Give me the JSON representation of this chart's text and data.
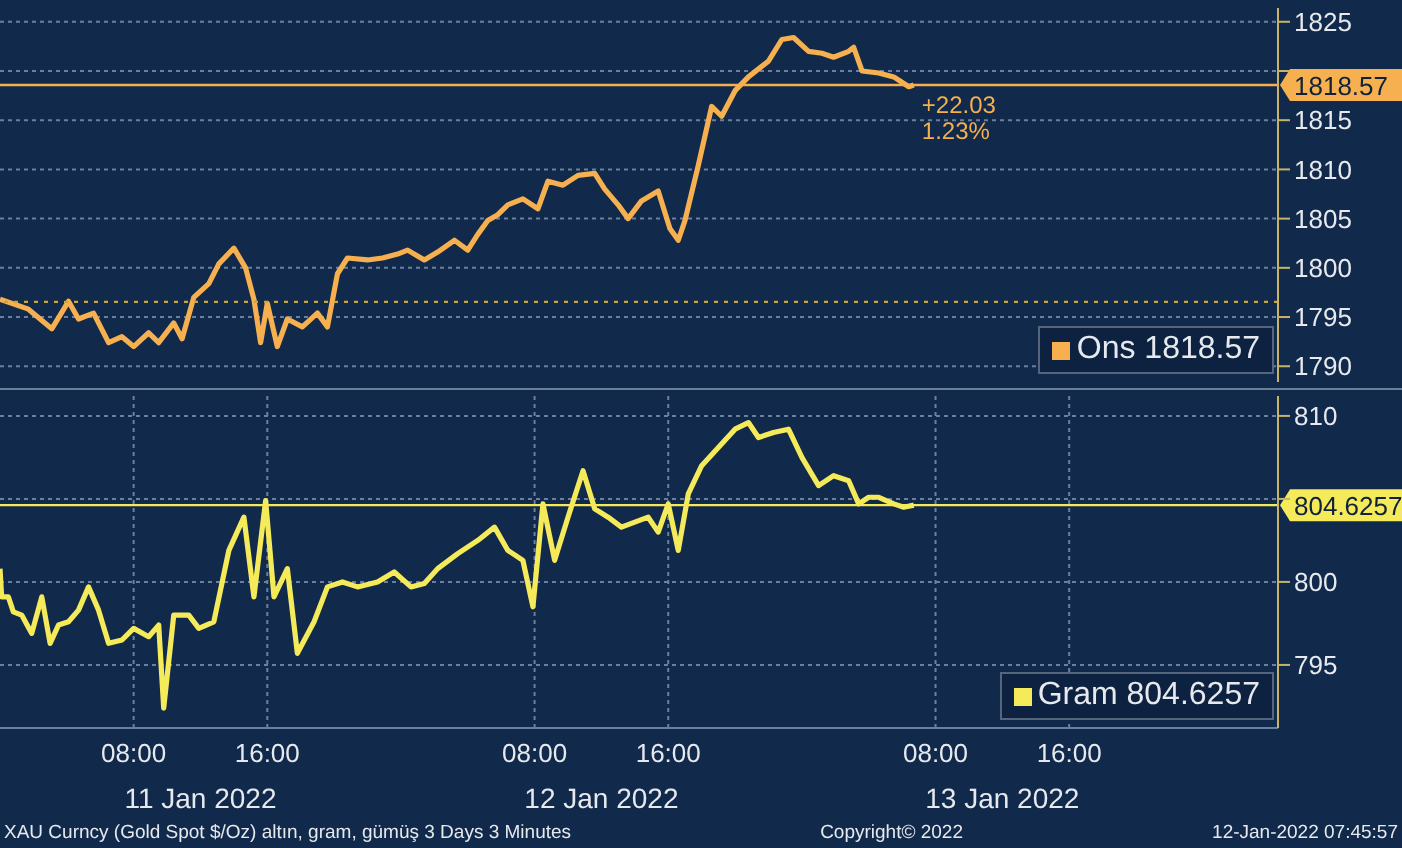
{
  "chart_data": [
    {
      "type": "line",
      "xlim": [
        "2022-01-11T00:00",
        "2022-01-14T04:30"
      ],
      "xticks": [
        {
          "value": "2022-01-11T08:00",
          "label": null
        },
        {
          "value": "2022-01-11T16:00",
          "label": null
        },
        {
          "value": "2022-01-12T08:00",
          "label": null
        },
        {
          "value": "2022-01-12T16:00",
          "label": null
        },
        {
          "value": "2022-01-13T08:00",
          "label": null
        },
        {
          "value": "2022-01-13T16:00",
          "label": null
        }
      ],
      "tick_labels": "y",
      "ylim": [
        1788.4,
        1826.4
      ],
      "yticks": [
        1790,
        1795,
        1800,
        1805,
        1810,
        1815,
        {
          "value": 1820,
          "label": null
        },
        1825
      ],
      "grid": true,
      "legend": "bottom right",
      "marker": "none",
      "line_style": "solid",
      "x": [
        "2022-01-11T00:00",
        "2022-01-11T01:42",
        "2022-01-11T03:06",
        "2022-01-11T04:06",
        "2022-01-11T04:42",
        "2022-01-11T05:36",
        "2022-01-11T06:30",
        "2022-01-11T07:18",
        "2022-01-11T08:00",
        "2022-01-11T08:54",
        "2022-01-11T09:30",
        "2022-01-11T10:24",
        "2022-01-11T10:54",
        "2022-01-11T11:36",
        "2022-01-11T12:30",
        "2022-01-11T13:06",
        "2022-01-11T14:00",
        "2022-01-11T14:42",
        "2022-01-11T15:12",
        "2022-01-11T15:36",
        "2022-01-11T16:00",
        "2022-01-11T16:36",
        "2022-01-11T17:12",
        "2022-01-11T18:06",
        "2022-01-11T19:00",
        "2022-01-11T19:36",
        "2022-01-11T20:12",
        "2022-01-11T20:48",
        "2022-01-11T22:00",
        "2022-01-11T22:54",
        "2022-01-11T23:48",
        "2022-01-12T00:24",
        "2022-01-12T01:24",
        "2022-01-12T02:12",
        "2022-01-12T03:12",
        "2022-01-12T04:00",
        "2022-01-12T04:36",
        "2022-01-12T05:12",
        "2022-01-12T05:48",
        "2022-01-12T06:24",
        "2022-01-12T07:18",
        "2022-01-12T08:12",
        "2022-01-12T08:48",
        "2022-01-12T09:42",
        "2022-01-12T10:36",
        "2022-01-12T11:36",
        "2022-01-12T12:12",
        "2022-01-12T13:00",
        "2022-01-12T13:36",
        "2022-01-12T14:24",
        "2022-01-12T15:24",
        "2022-01-12T16:06",
        "2022-01-12T16:36",
        "2022-01-12T17:00",
        "2022-01-12T17:48",
        "2022-01-12T18:36",
        "2022-01-12T19:12",
        "2022-01-12T20:00",
        "2022-01-12T20:48",
        "2022-01-12T22:00",
        "2022-01-12T22:48",
        "2022-01-12T23:30",
        "2022-01-13T00:24",
        "2022-01-13T01:12",
        "2022-01-13T01:54",
        "2022-01-13T02:48",
        "2022-01-13T03:06",
        "2022-01-13T03:36",
        "2022-01-13T04:36",
        "2022-01-13T05:30",
        "2022-01-13T06:24",
        "2022-01-13T06:42"
      ],
      "series": [
        {
          "name": "Ons 1818.57",
          "color": "#f6b04f",
          "values": [
            1796.8,
            1795.8,
            1793.8,
            1796.6,
            1794.8,
            1795.4,
            1792.4,
            1793.0,
            1792.0,
            1793.4,
            1792.4,
            1794.4,
            1792.8,
            1797.0,
            1798.4,
            1800.4,
            1802.0,
            1800.0,
            1796.8,
            1792.4,
            1796.4,
            1792.0,
            1794.8,
            1794.0,
            1795.4,
            1794.0,
            1799.4,
            1801.0,
            1800.8,
            1801.0,
            1801.4,
            1801.8,
            1800.8,
            1801.6,
            1802.8,
            1801.8,
            1803.4,
            1804.8,
            1805.4,
            1806.4,
            1807.0,
            1806.0,
            1808.8,
            1808.4,
            1809.4,
            1809.6,
            1808.0,
            1806.4,
            1805.0,
            1806.8,
            1807.8,
            1804.0,
            1802.8,
            1804.8,
            1810.4,
            1816.4,
            1815.4,
            1818.0,
            1819.4,
            1821.0,
            1823.2,
            1823.4,
            1822.0,
            1821.8,
            1821.4,
            1822.0,
            1822.4,
            1820.0,
            1819.8,
            1819.4,
            1818.4,
            1818.57
          ]
        }
      ],
      "ref_lines": [
        {
          "axis": "y",
          "value": 1818.57,
          "label": "1818.57",
          "color": "#f6b04f",
          "line_style": "solid"
        },
        {
          "axis": "y",
          "value": 1796.54,
          "color": "#c9a642",
          "line_style": "dotted"
        }
      ],
      "annotations": [
        {
          "text": "+22.03",
          "x": "2022-01-13T06:42",
          "y": 1818.57
        },
        {
          "text": "1.23%",
          "x": "2022-01-13T06:42",
          "y": 1818.57
        }
      ]
    },
    {
      "type": "line",
      "xlim": [
        "2022-01-11T00:00",
        "2022-01-14T04:30"
      ],
      "xticks": [
        {
          "value": "2022-01-11T08:00",
          "label": "08:00"
        },
        {
          "value": "2022-01-11T16:00",
          "label": "16:00"
        },
        {
          "value": "2022-01-12T08:00",
          "label": "08:00"
        },
        {
          "value": "2022-01-12T16:00",
          "label": "16:00"
        },
        {
          "value": "2022-01-13T08:00",
          "label": "08:00"
        },
        {
          "value": "2022-01-13T16:00",
          "label": "16:00"
        }
      ],
      "x2lim": [
        "2022-01-11T00:00",
        "2022-01-14T04:30"
      ],
      "x2ticks": [
        {
          "value": "2022-01-11T12:00",
          "label": "11 Jan 2022"
        },
        {
          "value": "2022-01-12T12:00",
          "label": "12 Jan 2022"
        },
        {
          "value": "2022-01-13T12:00",
          "label": "13 Jan 2022"
        }
      ],
      "ylim": [
        791.2,
        811.2
      ],
      "yticks": [
        795,
        800,
        {
          "value": 805,
          "label": null
        },
        810
      ],
      "grid": true,
      "legend": "bottom right",
      "marker": "none",
      "line_style": "solid",
      "x": [
        "2022-01-11T00:00",
        "2022-01-11T00:06",
        "2022-01-11T00:30",
        "2022-01-11T00:48",
        "2022-01-11T01:18",
        "2022-01-11T01:54",
        "2022-01-11T02:30",
        "2022-01-11T03:00",
        "2022-01-11T03:30",
        "2022-01-11T04:06",
        "2022-01-11T04:42",
        "2022-01-11T05:18",
        "2022-01-11T05:54",
        "2022-01-11T06:30",
        "2022-01-11T07:18",
        "2022-01-11T08:00",
        "2022-01-11T08:54",
        "2022-01-11T09:30",
        "2022-01-11T09:48",
        "2022-01-11T10:24",
        "2022-01-11T11:18",
        "2022-01-11T11:54",
        "2022-01-11T12:48",
        "2022-01-11T13:42",
        "2022-01-11T14:36",
        "2022-01-11T15:12",
        "2022-01-11T15:54",
        "2022-01-11T16:24",
        "2022-01-11T17:12",
        "2022-01-11T17:48",
        "2022-01-11T18:48",
        "2022-01-11T19:36",
        "2022-01-11T20:30",
        "2022-01-11T21:24",
        "2022-01-11T22:36",
        "2022-01-11T23:36",
        "2022-01-12T00:36",
        "2022-01-12T01:24",
        "2022-01-12T02:12",
        "2022-01-12T03:24",
        "2022-01-12T04:36",
        "2022-01-12T05:36",
        "2022-01-12T06:24",
        "2022-01-12T07:18",
        "2022-01-12T07:54",
        "2022-01-12T08:30",
        "2022-01-12T09:12",
        "2022-01-12T10:00",
        "2022-01-12T10:54",
        "2022-01-12T11:36",
        "2022-01-12T12:24",
        "2022-01-12T13:12",
        "2022-01-12T14:00",
        "2022-01-12T14:48",
        "2022-01-12T15:24",
        "2022-01-12T16:00",
        "2022-01-12T16:36",
        "2022-01-12T17:12",
        "2022-01-12T18:00",
        "2022-01-12T19:00",
        "2022-01-12T20:00",
        "2022-01-12T20:48",
        "2022-01-12T21:24",
        "2022-01-12T22:18",
        "2022-01-12T23:12",
        "2022-01-13T00:00",
        "2022-01-13T01:00",
        "2022-01-13T01:54",
        "2022-01-13T02:48",
        "2022-01-13T03:24",
        "2022-01-13T04:00",
        "2022-01-13T04:36",
        "2022-01-13T05:30",
        "2022-01-13T06:06",
        "2022-01-13T06:42"
      ],
      "series": [
        {
          "name": "Gram 804.6257",
          "color": "#f5ea5a",
          "values": [
            800.8,
            799.1,
            799.1,
            798.2,
            798.0,
            796.9,
            799.1,
            796.3,
            797.4,
            797.6,
            798.3,
            799.7,
            798.3,
            796.3,
            796.5,
            797.2,
            796.7,
            797.4,
            792.4,
            798.0,
            798.0,
            797.2,
            797.6,
            801.9,
            803.9,
            799.1,
            804.9,
            799.1,
            800.8,
            795.7,
            797.6,
            799.7,
            800.0,
            799.7,
            800.0,
            800.6,
            799.7,
            799.9,
            800.8,
            801.7,
            802.5,
            803.3,
            801.9,
            801.3,
            798.5,
            804.7,
            801.3,
            803.9,
            806.7,
            804.4,
            803.9,
            803.3,
            803.6,
            803.9,
            803.0,
            804.7,
            801.9,
            805.3,
            807.0,
            808.1,
            809.2,
            809.6,
            808.7,
            809.0,
            809.2,
            807.5,
            805.8,
            806.4,
            806.1,
            804.7,
            805.1,
            805.1,
            804.7,
            804.5,
            804.6257
          ]
        }
      ],
      "ref_lines": [
        {
          "axis": "y",
          "value": 804.6257,
          "label": "804.6257",
          "color": "#f5ea5a",
          "line_style": "solid"
        }
      ],
      "annotations": [
        "XAU Curncy (Gold Spot  $/Oz) altın, gram, gümüş 3 Days 3 Minutes",
        "Copyright© 2022",
        "12-Jan-2022 07:45:57"
      ]
    }
  ]
}
